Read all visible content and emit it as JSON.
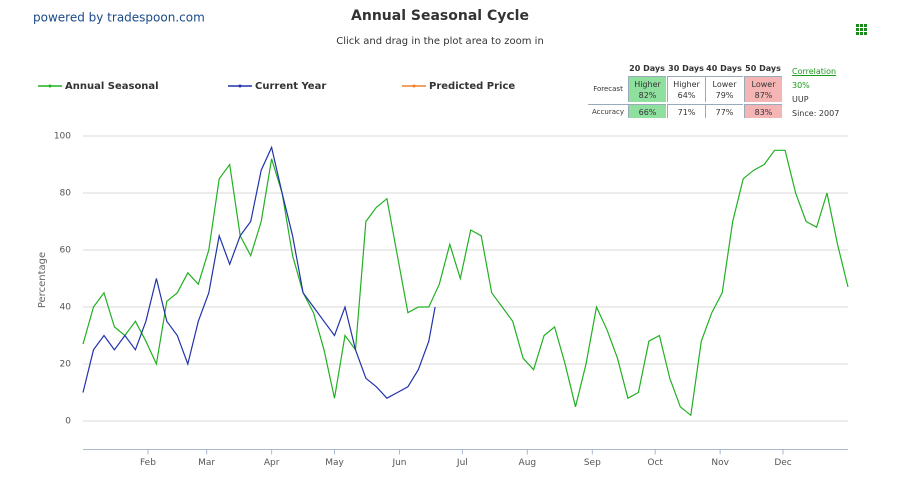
{
  "powered_by": "powered by tradespoon.com",
  "chart_data": {
    "type": "line",
    "title": "Annual Seasonal Cycle",
    "subtitle": "Click and drag in the plot area to zoom in",
    "y_label": "Percentage",
    "xlim": [
      0,
      365
    ],
    "ylim": [
      -10,
      105
    ],
    "yticks": [
      0,
      20,
      40,
      60,
      80,
      100
    ],
    "xticks": [
      {
        "value": 31,
        "label": "Feb"
      },
      {
        "value": 59,
        "label": "Mar"
      },
      {
        "value": 90,
        "label": "Apr"
      },
      {
        "value": 120,
        "label": "May"
      },
      {
        "value": 151,
        "label": "Jun"
      },
      {
        "value": 181,
        "label": "Jul"
      },
      {
        "value": 212,
        "label": "Aug"
      },
      {
        "value": 243,
        "label": "Sep"
      },
      {
        "value": 273,
        "label": "Oct"
      },
      {
        "value": 304,
        "label": "Nov"
      },
      {
        "value": 334,
        "label": "Dec"
      }
    ],
    "grid": true,
    "series": [
      {
        "name": "Annual Seasonal",
        "color": "#22b022",
        "x": [
          0,
          5,
          10,
          15,
          20,
          25,
          30,
          35,
          40,
          45,
          50,
          55,
          60,
          65,
          70,
          75,
          80,
          85,
          90,
          95,
          100,
          105,
          110,
          115,
          120,
          125,
          130,
          135,
          140,
          145,
          150,
          155,
          160,
          165,
          170,
          175,
          180,
          185,
          190,
          195,
          200,
          205,
          210,
          215,
          220,
          225,
          230,
          235,
          240,
          245,
          250,
          255,
          260,
          265,
          270,
          275,
          280,
          285,
          290,
          295,
          300,
          305,
          310,
          315,
          320,
          325,
          330,
          335,
          340,
          345,
          350,
          355,
          360,
          365
        ],
        "values": [
          27,
          40,
          45,
          33,
          30,
          35,
          28,
          20,
          42,
          45,
          52,
          48,
          60,
          85,
          90,
          65,
          58,
          70,
          92,
          80,
          58,
          45,
          38,
          25,
          8,
          30,
          25,
          70,
          75,
          78,
          58,
          38,
          40,
          40,
          48,
          62,
          50,
          67,
          65,
          45,
          40,
          35,
          22,
          18,
          30,
          33,
          20,
          5,
          20,
          40,
          32,
          22,
          8,
          10,
          28,
          30,
          15,
          5,
          2,
          28,
          38,
          45,
          70,
          85,
          88,
          90,
          95,
          95,
          80,
          70,
          68,
          80,
          62,
          47
        ]
      },
      {
        "name": "Current Year",
        "color": "#2233aa",
        "x": [
          0,
          5,
          10,
          15,
          20,
          25,
          30,
          35,
          40,
          45,
          50,
          55,
          60,
          65,
          70,
          75,
          80,
          85,
          90,
          95,
          100,
          105,
          110,
          115,
          120,
          125,
          130,
          135,
          140,
          145,
          150,
          155,
          160,
          165,
          168
        ],
        "values": [
          10,
          25,
          30,
          25,
          30,
          25,
          35,
          50,
          35,
          30,
          20,
          35,
          45,
          65,
          55,
          65,
          70,
          88,
          96,
          80,
          65,
          45,
          40,
          35,
          30,
          40,
          25,
          15,
          12,
          8,
          10,
          12,
          18,
          28,
          40
        ]
      },
      {
        "name": "Predicted Price",
        "color": "#f08030",
        "x": [],
        "values": []
      }
    ]
  },
  "forecast_table": {
    "columns": [
      "20 Days",
      "30 Days",
      "40 Days",
      "50 Days"
    ],
    "rows": [
      {
        "label": "Forecast",
        "cells": [
          [
            "Higher",
            "82%"
          ],
          [
            "Higher",
            "64%"
          ],
          [
            "Lower",
            "79%"
          ],
          [
            "Lower",
            "87%"
          ]
        ]
      },
      {
        "label": "Accuracy",
        "cells": [
          [
            "66%"
          ],
          [
            "71%"
          ],
          [
            "77%"
          ],
          [
            "83%"
          ]
        ]
      }
    ],
    "correlation_label": "Correlation",
    "correlation": "30%",
    "symbol": "UUP",
    "since": "Since: 2007"
  }
}
